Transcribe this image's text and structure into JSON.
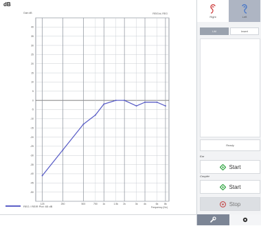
{
  "chart_panel": {
    "title": "dB",
    "y_axis_label": "Gain dB",
    "mode_label": "REIG/ol, REG",
    "x_axis_label": "Frequency (Hz)",
    "legend_label": "REG / REIR Plot: 65 dB"
  },
  "chart_data": {
    "type": "line",
    "title": "",
    "ylabel": "Gain dB",
    "xlabel": "Frequency (Hz)",
    "ylim": [
      -55,
      45
    ],
    "yticks": [
      40,
      35,
      30,
      25,
      20,
      15,
      10,
      5,
      0,
      -5,
      -10,
      -15,
      -20,
      -25,
      -30,
      -35,
      -40,
      -45,
      -50
    ],
    "x_ticks": [
      "125",
      "250",
      "500",
      "750",
      "1k",
      "1.5k",
      "2k",
      "3k",
      "4k",
      "6k",
      "8k"
    ],
    "x_scale": "log",
    "grid": true,
    "series": [
      {
        "name": "REG / REIR Plot: 65 dB",
        "color": "#5b5fc7",
        "x": [
          125,
          250,
          500,
          750,
          1000,
          1500,
          2000,
          3000,
          4000,
          6000,
          8000
        ],
        "y": [
          -41,
          -27,
          -13,
          -8,
          -2,
          0,
          0,
          -3,
          -1,
          -1,
          -3
        ]
      }
    ]
  },
  "side": {
    "tab_right_label": "Right",
    "tab_left_label": "Left",
    "mode_left_label": "LM",
    "mode_right_label": "Insert",
    "status": "Ready",
    "ear_label": "Ear",
    "coupler_label": "Coupler",
    "ear_start": "Start",
    "coupler_start": "Start",
    "stop": "Stop"
  },
  "colors": {
    "curve": "#5b5fc7",
    "right_ear": "#d04545",
    "left_ear": "#4a78c8",
    "start": "#3aa84a",
    "stop": "#c44545",
    "grid": "#c8ccd2"
  }
}
